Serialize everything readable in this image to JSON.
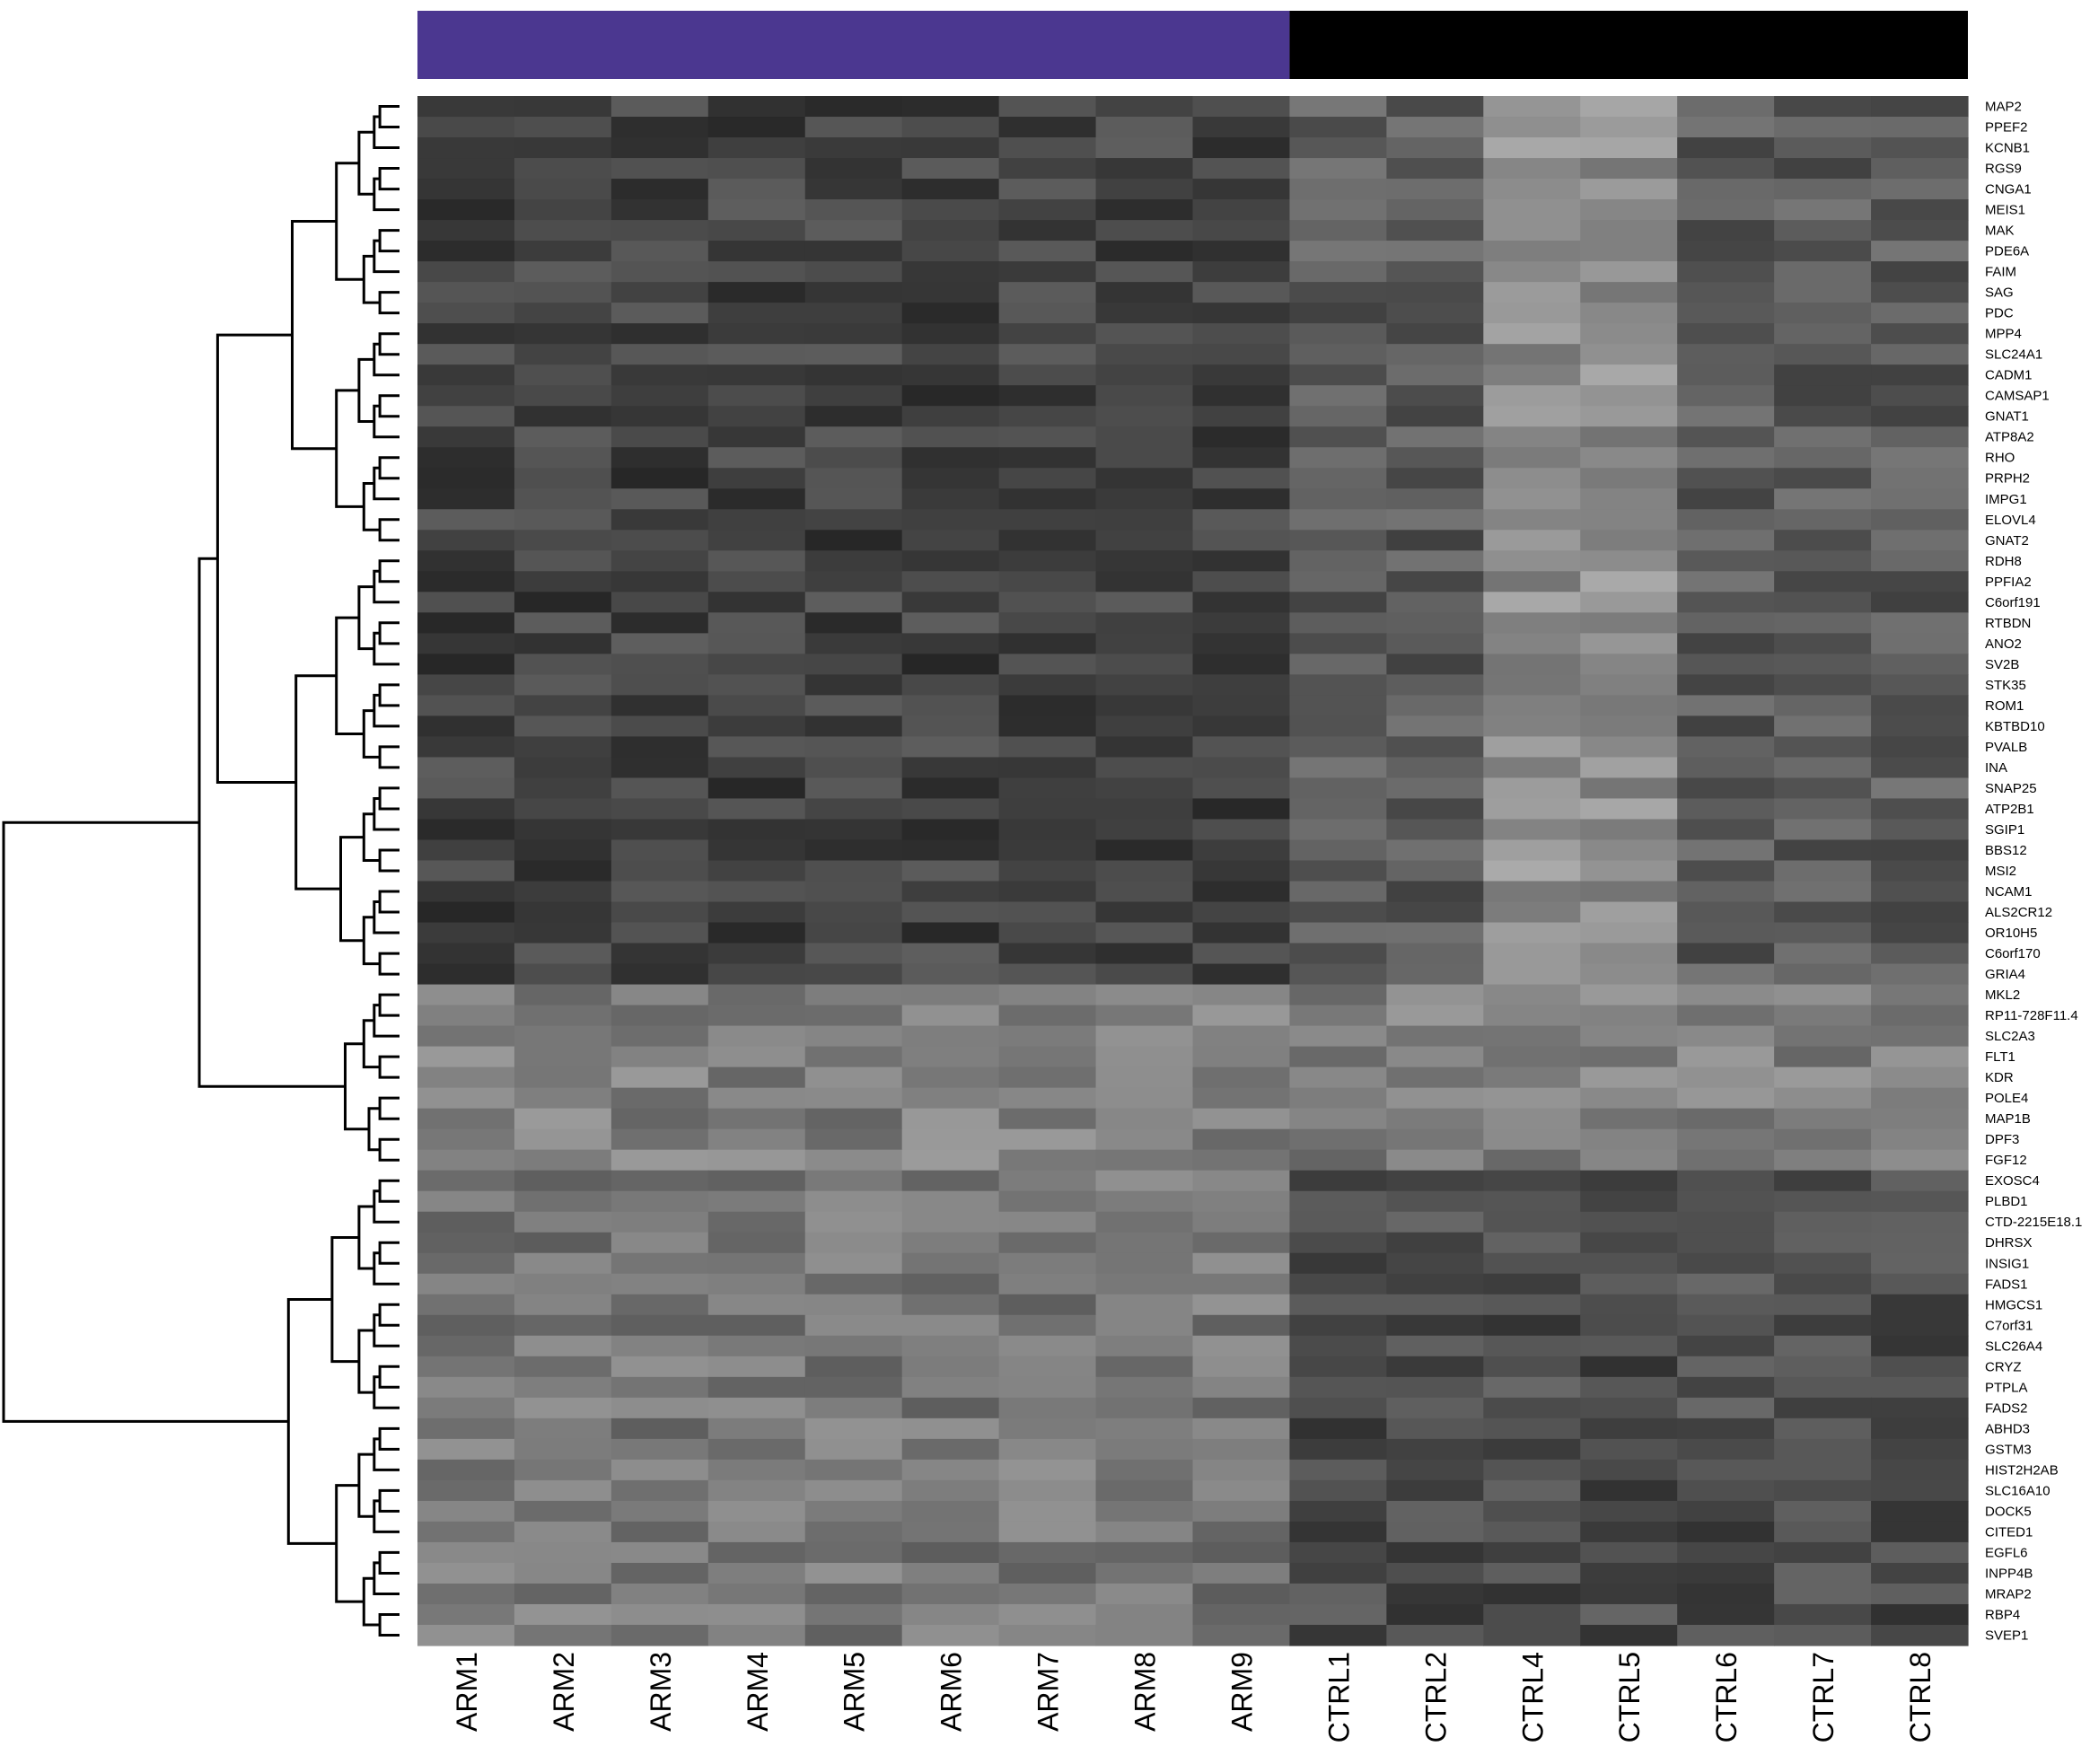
{
  "chart_data": {
    "type": "heatmap",
    "title": "",
    "xlabel": "",
    "ylabel": "",
    "colormap": {
      "low": "#000000",
      "high": "#ffffff"
    },
    "columns": [
      "ARM1",
      "ARM2",
      "ARM3",
      "ARM4",
      "ARM5",
      "ARM6",
      "ARM7",
      "ARM8",
      "ARM9",
      "CTRL1",
      "CTRL2",
      "CTRL4",
      "CTRL5",
      "CTRL6",
      "CTRL7",
      "CTRL8"
    ],
    "column_groups": [
      {
        "group": "ARM",
        "count": 9,
        "color": "#4b3790"
      },
      {
        "group": "CTRL",
        "count": 7,
        "color": "#000000"
      }
    ],
    "rows": [
      "MAP2",
      "PPEF2",
      "KCNB1",
      "RGS9",
      "CNGA1",
      "MEIS1",
      "MAK",
      "PDE6A",
      "FAIM",
      "SAG",
      "PDC",
      "MPP4",
      "SLC24A1",
      "CADM1",
      "CAMSAP1",
      "GNAT1",
      "ATP8A2",
      "RHO",
      "PRPH2",
      "IMPG1",
      "ELOVL4",
      "GNAT2",
      "RDH8",
      "PPFIA2",
      "C6orf191",
      "RTBDN",
      "ANO2",
      "SV2B",
      "STK35",
      "ROM1",
      "KBTBD10",
      "PVALB",
      "INA",
      "SNAP25",
      "ATP2B1",
      "SGIP1",
      "BBS12",
      "MSI2",
      "NCAM1",
      "ALS2CR12",
      "OR10H5",
      "C6orf170",
      "GRIA4",
      "MKL2",
      "RP11-728F11.4",
      "SLC2A3",
      "FLT1",
      "KDR",
      "POLE4",
      "MAP1B",
      "DPF3",
      "FGF12",
      "EXOSC4",
      "PLBD1",
      "CTD-2215E18.1",
      "DHRSX",
      "INSIG1",
      "FADS1",
      "HMGCS1",
      "C7orf31",
      "SLC26A4",
      "CRYZ",
      "PTPLA",
      "FADS2",
      "ABHD3",
      "GSTM3",
      "HIST2H2AB",
      "SLC16A10",
      "DOCK5",
      "CITED1",
      "EGFL6",
      "INPP4B",
      "MRAP2",
      "RBP4",
      "SVEP1"
    ],
    "grid": false,
    "dendrogram": "rows"
  }
}
